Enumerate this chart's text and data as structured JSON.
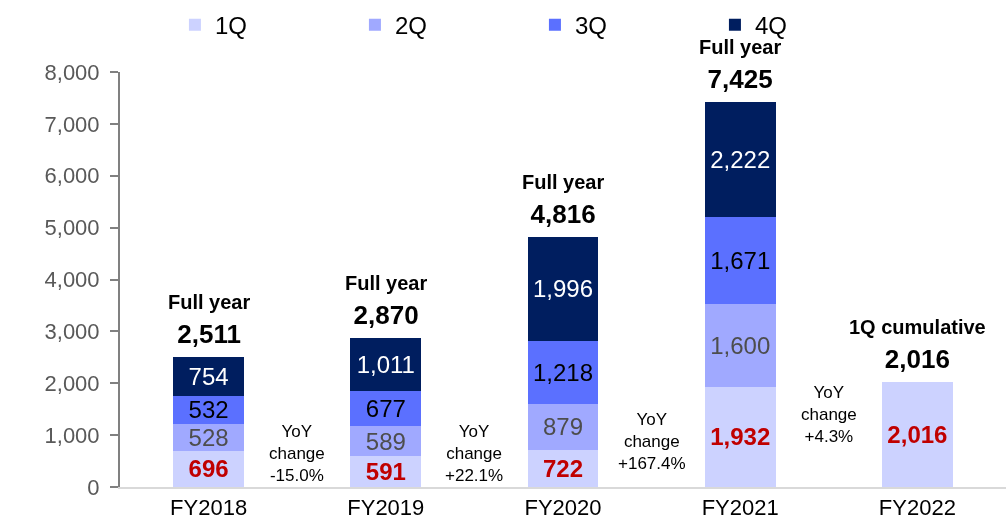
{
  "chart_data": {
    "type": "bar",
    "stacked": true,
    "categories": [
      "FY2018",
      "FY2019",
      "FY2020",
      "FY2021",
      "FY2022"
    ],
    "series": [
      {
        "name": "1Q",
        "color": "#ccd2ff",
        "values": [
          696,
          591,
          722,
          1932,
          2016
        ],
        "value_labels": [
          "696",
          "591",
          "722",
          "1,932",
          "2,016"
        ]
      },
      {
        "name": "2Q",
        "color": "#a0a9ff",
        "values": [
          528,
          589,
          879,
          1600,
          null
        ],
        "value_labels": [
          "528",
          "589",
          "879",
          "1,600",
          null
        ]
      },
      {
        "name": "3Q",
        "color": "#5b70ff",
        "values": [
          532,
          677,
          1218,
          1671,
          null
        ],
        "value_labels": [
          "532",
          "677",
          "1,218",
          "1,671",
          null
        ]
      },
      {
        "name": "4Q",
        "color": "#001e5f",
        "values": [
          754,
          1011,
          1996,
          2222,
          null
        ],
        "value_labels": [
          "754",
          "1,011",
          "1,996",
          "2,222",
          null
        ]
      }
    ],
    "ylim": [
      0,
      8000
    ],
    "yticks": [
      0,
      {
        "value": 1000,
        "label": "1,000"
      },
      {
        "value": 2000,
        "label": "2,000"
      },
      {
        "value": 3000,
        "label": "3,000"
      },
      {
        "value": 4000,
        "label": "4,000"
      },
      {
        "value": 5000,
        "label": "5,000"
      },
      {
        "value": 6000,
        "label": "6,000"
      },
      {
        "value": 7000,
        "label": "7,000"
      },
      {
        "value": 8000,
        "label": "8,000"
      }
    ],
    "totals": [
      "Full year\n2,511",
      "Full year\n2,870",
      "Full year\n4,816",
      "Full year\n7,425",
      "1Q cumulative\n2,016"
    ],
    "annotations": [
      "YoY\nchange\n-15.0%",
      "YoY\nchange\n+22.1%",
      "YoY\nchange\n+167.4%",
      "YoY\nchange\n+4.3%"
    ],
    "legend": "top",
    "grid": false
  }
}
